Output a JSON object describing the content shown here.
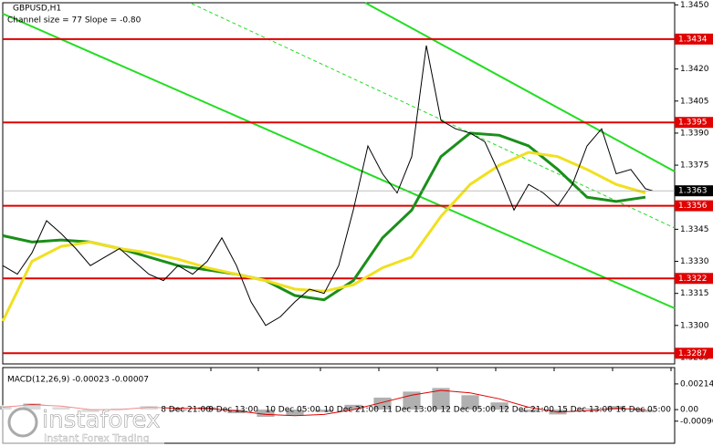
{
  "chart_data": [
    {
      "type": "line",
      "title": "GBPUSD,H1",
      "subtitle": "Channel size = 77 Slope = -0.80",
      "x": [
        0,
        4,
        8,
        12,
        16,
        20,
        24,
        28,
        32,
        36,
        40,
        44,
        48,
        52,
        56,
        60,
        64,
        68,
        72,
        76,
        80,
        84,
        88,
        92,
        96,
        100,
        104,
        108,
        112,
        116,
        120,
        124,
        128,
        132,
        136,
        140,
        144,
        148,
        152,
        156,
        160,
        164,
        168,
        172,
        176,
        178
      ],
      "values": [
        1.3328,
        1.3324,
        1.3334,
        1.3349,
        1.3343,
        1.3336,
        1.3328,
        1.3332,
        1.3336,
        1.333,
        1.3324,
        1.3321,
        1.3328,
        1.3324,
        1.333,
        1.3341,
        1.3328,
        1.3311,
        1.33,
        1.3304,
        1.3311,
        1.3317,
        1.3315,
        1.3328,
        1.3354,
        1.3384,
        1.3371,
        1.3362,
        1.3379,
        1.3431,
        1.3396,
        1.3392,
        1.339,
        1.3386,
        1.3371,
        1.3354,
        1.3366,
        1.3362,
        1.3356,
        1.3366,
        1.3384,
        1.3392,
        1.3371,
        1.3373,
        1.3364,
        1.3363
      ],
      "color": "#000000",
      "series": [
        {
          "color": "#1a8f1a",
          "x": [
            0,
            8,
            16,
            24,
            32,
            40,
            48,
            56,
            64,
            72,
            80,
            88,
            96,
            104,
            112,
            120,
            128,
            136,
            144,
            152,
            160,
            168,
            176
          ],
          "values": [
            1.3342,
            1.3339,
            1.334,
            1.3339,
            1.3336,
            1.3332,
            1.3328,
            1.3326,
            1.3324,
            1.3321,
            1.3314,
            1.3312,
            1.3321,
            1.3341,
            1.3354,
            1.3379,
            1.339,
            1.3389,
            1.3384,
            1.3373,
            1.336,
            1.3358,
            1.336
          ]
        },
        {
          "color": "#f0e020",
          "x": [
            0,
            8,
            16,
            24,
            32,
            40,
            48,
            56,
            64,
            72,
            80,
            88,
            96,
            104,
            112,
            120,
            128,
            136,
            144,
            152,
            160,
            168,
            176
          ],
          "values": [
            1.3302,
            1.333,
            1.3337,
            1.3339,
            1.3336,
            1.3334,
            1.3331,
            1.3327,
            1.3324,
            1.3321,
            1.3317,
            1.3316,
            1.3319,
            1.3327,
            1.3332,
            1.3351,
            1.3366,
            1.3375,
            1.3381,
            1.3379,
            1.3373,
            1.3366,
            1.3362
          ]
        }
      ],
      "levels": [
        1.3434,
        1.3395,
        1.3356,
        1.3322,
        1.3287
      ],
      "level_color": "#e00000",
      "last_price": 1.3363,
      "xlim": [
        0,
        184
      ],
      "ylim": [
        1.3282,
        1.3451
      ],
      "yticks": [
        {
          "value": 1.345,
          "label": "1.3450"
        },
        {
          "value": 1.342,
          "label": "1.3420"
        },
        {
          "value": 1.3405,
          "label": "1.3405"
        },
        {
          "value": 1.339,
          "label": "1.3390"
        },
        {
          "value": 1.3375,
          "label": "1.3375"
        },
        {
          "value": 1.3345,
          "label": "1.3345"
        },
        {
          "value": 1.333,
          "label": "1.3330"
        },
        {
          "value": 1.3315,
          "label": "1.3315"
        },
        {
          "value": 1.33,
          "label": "1.3300"
        },
        {
          "value": 1.3285,
          "label": "1.3285"
        }
      ],
      "xticks": [
        {
          "value": 57,
          "label": "8 Dec 21:00"
        },
        {
          "value": 70,
          "label": "9 Dec 13:00"
        },
        {
          "value": 87,
          "label": "10 Dec 05:00"
        },
        {
          "value": 103,
          "label": "10 Dec 21:00"
        },
        {
          "value": 119,
          "label": "11 Dec 13:00"
        },
        {
          "value": 135,
          "label": "12 Dec 05:00"
        },
        {
          "value": 151,
          "label": "12 Dec 21:00"
        },
        {
          "value": 167,
          "label": "15 Dec 13:00"
        },
        {
          "value": 183,
          "label": "16 Dec 05:00"
        }
      ]
    },
    {
      "type": "bar",
      "title": "MACD(12,26,9) -0.00023 -0.00007",
      "x": [
        0,
        8,
        16,
        24,
        32,
        40,
        48,
        56,
        64,
        72,
        80,
        88,
        96,
        104,
        112,
        120,
        128,
        136,
        144,
        152,
        160,
        168,
        176
      ],
      "values": [
        0.0003,
        0.0005,
        0.0002,
        -0.0002,
        0.0001,
        0.0003,
        -0.0001,
        0.0002,
        -0.0003,
        -0.0006,
        -0.0005,
        -0.0002,
        0.0004,
        0.001,
        0.0015,
        0.0018,
        0.0012,
        0.0006,
        -0.0002,
        -0.0004,
        0.0001,
        0.0003,
        -0.0002
      ],
      "color": "#b0b0b0",
      "series": [
        {
          "color": "#e00000",
          "x": [
            0,
            8,
            16,
            24,
            32,
            40,
            48,
            56,
            64,
            72,
            80,
            88,
            96,
            104,
            112,
            120,
            128,
            136,
            144,
            152,
            160,
            168,
            176
          ],
          "values": [
            0.0002,
            0.0004,
            0.0003,
            0.0,
            0.0,
            0.0002,
            0.0001,
            0.0001,
            -0.0001,
            -0.0004,
            -0.0005,
            -0.0004,
            0.0,
            0.0006,
            0.0012,
            0.0016,
            0.0014,
            0.0009,
            0.0002,
            -0.0002,
            -0.0001,
            0.0001,
            0.0
          ]
        }
      ],
      "xlim": [
        0,
        184
      ],
      "ylim": [
        -0.0028,
        0.0035
      ],
      "yticks": [
        0.00214,
        {
          "value": 0,
          "label": "0.00"
        },
        -0.00096
      ]
    }
  ],
  "watermark": {
    "brand": "instaforex",
    "tagline": "Instant Forex Trading"
  }
}
